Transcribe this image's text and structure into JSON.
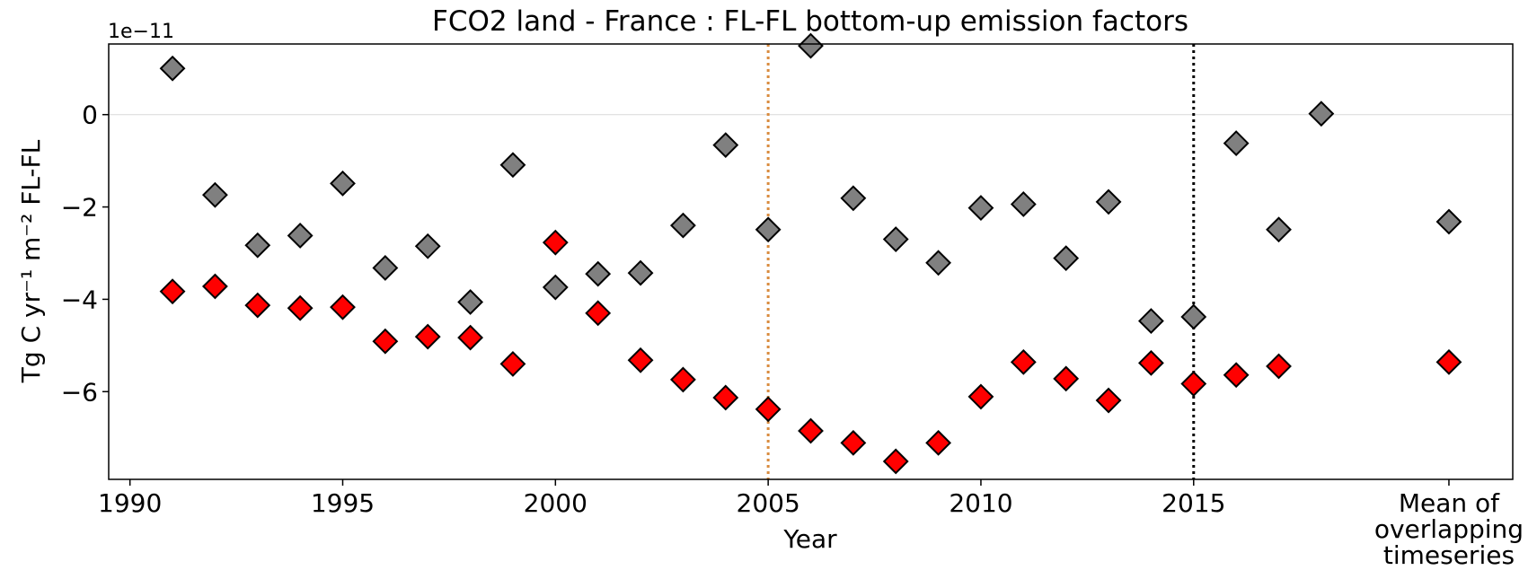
{
  "chart_data": {
    "type": "scatter",
    "title": "FCO2 land - France : FL-FL bottom-up emission factors",
    "xlabel": "Year",
    "ylabel": "Tg C yr⁻¹ m⁻² FL-FL",
    "y_offset_label": "1e−11",
    "x": [
      1991,
      1992,
      1993,
      1994,
      1995,
      1996,
      1997,
      1998,
      1999,
      2000,
      2001,
      2002,
      2003,
      2004,
      2005,
      2006,
      2007,
      2008,
      2009,
      2010,
      2011,
      2012,
      2013,
      2014,
      2015,
      2016,
      2017,
      2018,
      2021
    ],
    "series": [
      {
        "color": "#808080",
        "values": [
          1.0,
          -1.74,
          -2.83,
          -2.62,
          -1.49,
          -3.32,
          -2.85,
          -4.06,
          -1.09,
          -3.74,
          -3.45,
          -3.43,
          -2.4,
          -0.66,
          -2.49,
          1.49,
          -1.81,
          -2.7,
          -3.21,
          -2.02,
          -1.94,
          -3.11,
          -1.89,
          -4.47,
          -4.38,
          -0.62,
          -2.49,
          0.02,
          -2.32
        ]
      },
      {
        "color": "#ff0000",
        "values": [
          -3.83,
          -3.72,
          -4.13,
          -4.19,
          -4.17,
          -4.91,
          -4.81,
          -4.83,
          -5.4,
          -2.77,
          -4.3,
          -5.32,
          -5.74,
          -6.13,
          -6.38,
          -6.85,
          -7.11,
          -7.51,
          -7.11,
          -6.11,
          -5.36,
          -5.72,
          -6.19,
          -5.38,
          -5.83,
          -5.64,
          -5.45,
          null,
          -5.36
        ]
      }
    ],
    "xlim": [
      1989.5,
      2022.5
    ],
    "ylim": [
      -7.9,
      1.53
    ],
    "xticks": [
      1990,
      1995,
      2000,
      2005,
      2010,
      2015,
      {
        "value": 2021,
        "label": "Mean of\noverlapping\ntimeseries"
      }
    ],
    "yticks": [
      {
        "value": -6,
        "label": "−6"
      },
      {
        "value": -4,
        "label": "−4"
      },
      {
        "value": -2,
        "label": "−2"
      },
      0
    ],
    "hlines": [
      {
        "y": 0,
        "color": "#d9d9d9"
      }
    ],
    "vlines": [
      {
        "x": 2005,
        "color": "#d98c3f"
      },
      {
        "x": 2015,
        "color": "#000000"
      }
    ]
  }
}
